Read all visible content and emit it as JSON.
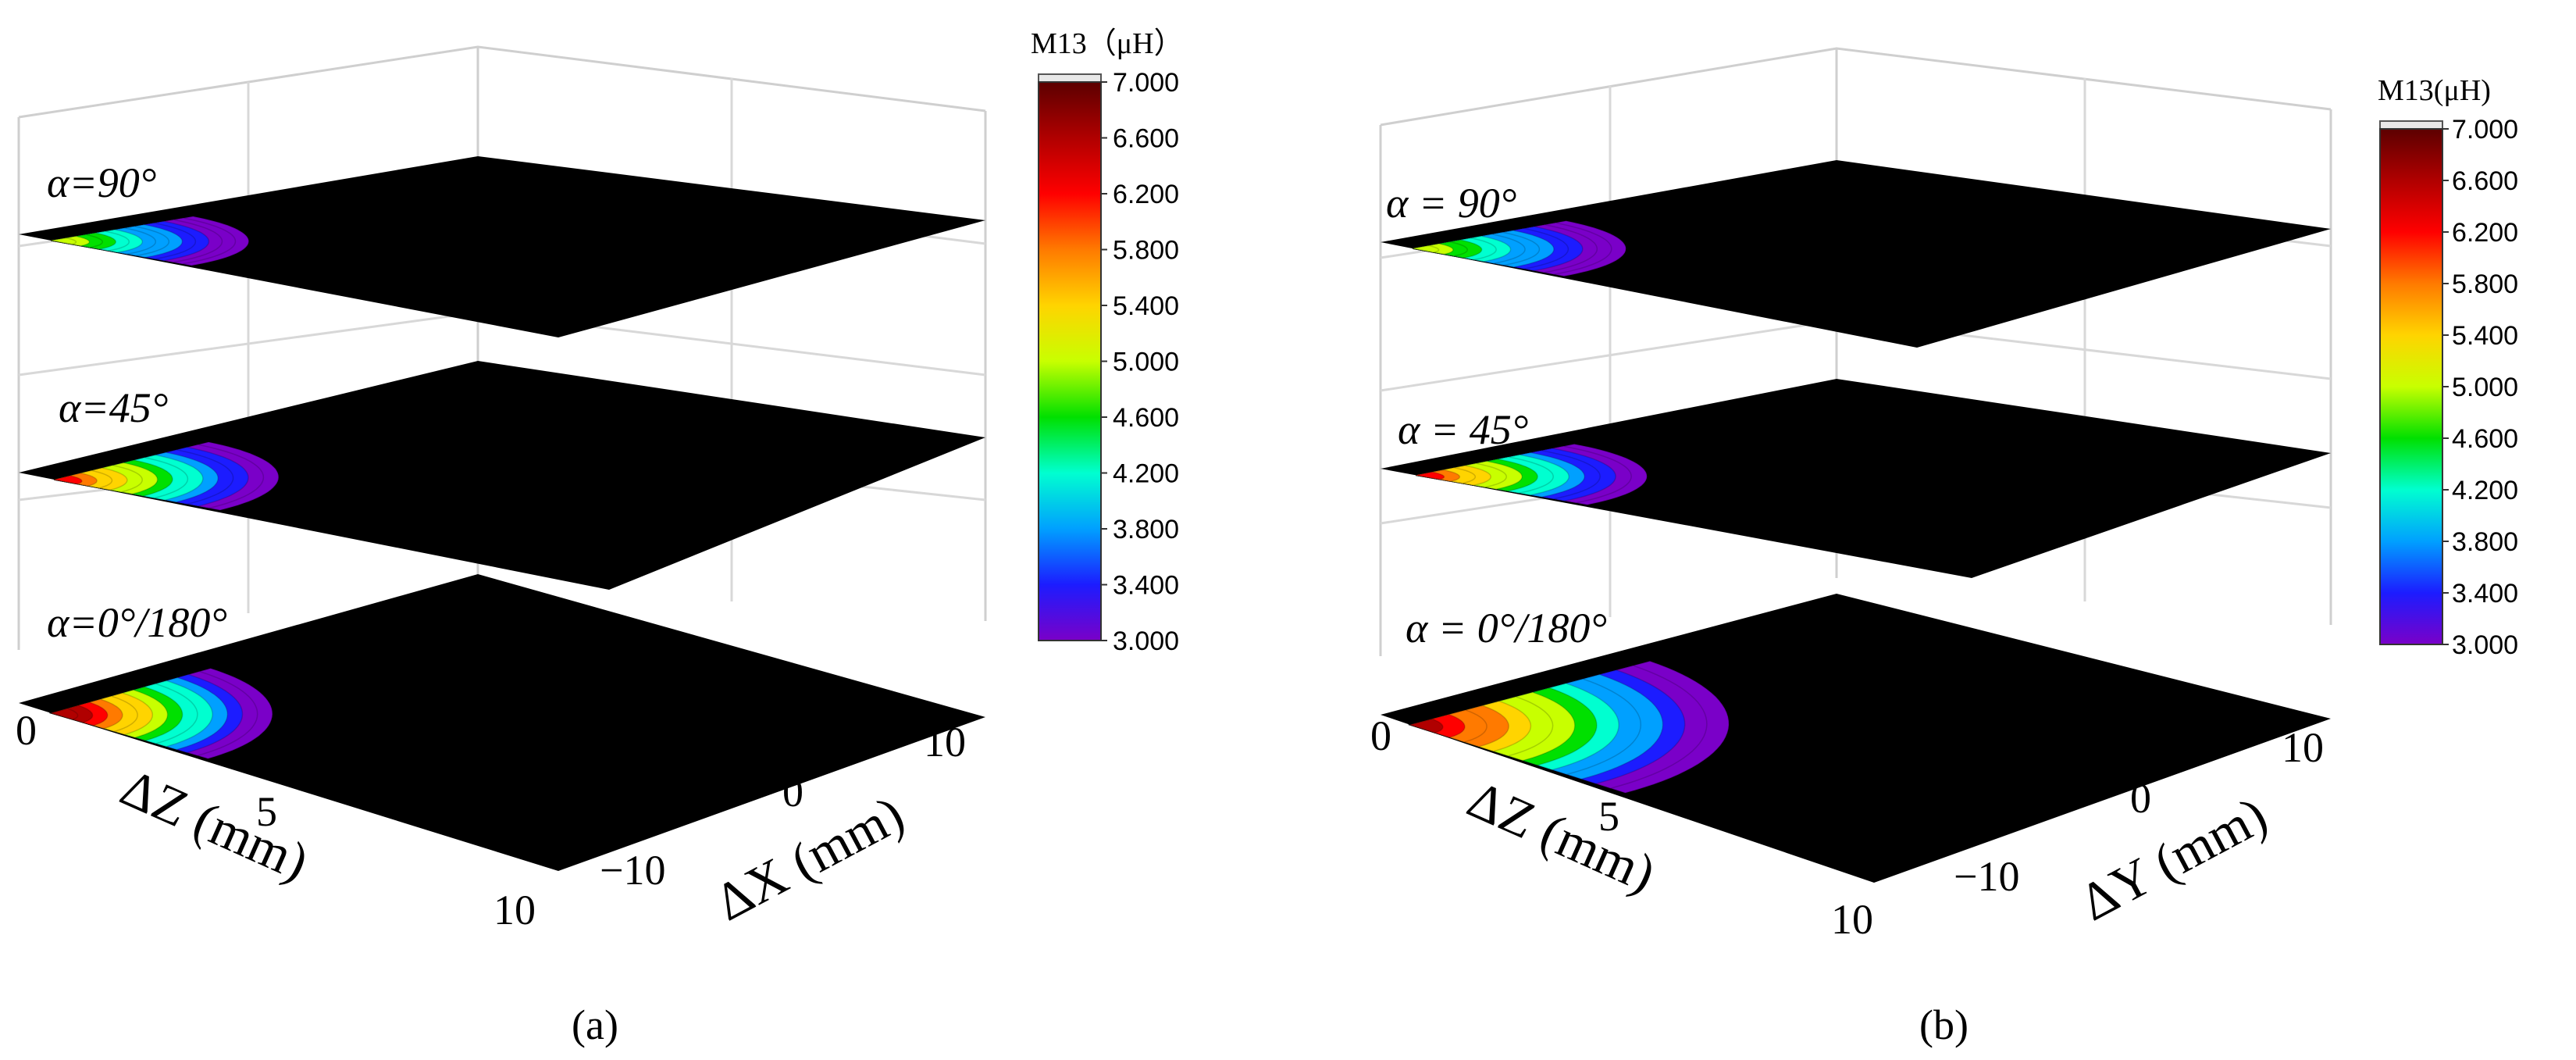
{
  "chart_data": [
    {
      "type": "heatmap",
      "panel_label": "(a)",
      "colorbar": {
        "title": "M13（μH）",
        "ticks": [
          "7.000",
          "6.600",
          "6.200",
          "5.800",
          "5.400",
          "5.000",
          "4.600",
          "4.200",
          "3.800",
          "3.400",
          "3.000"
        ],
        "range": [
          3.0,
          7.0
        ],
        "colors": [
          "#5c0000",
          "#b00000",
          "#ff0000",
          "#ff7a00",
          "#ffd400",
          "#c8ff00",
          "#00e000",
          "#00ffd0",
          "#00a0ff",
          "#1c1cff",
          "#7a00c8",
          "#000000"
        ]
      },
      "x_axis": {
        "title": "ΔZ (mm)",
        "tick_labels": [
          "0",
          "5",
          "10"
        ]
      },
      "y_axis": {
        "title": "ΔX (mm)",
        "tick_labels": [
          "−10",
          "0",
          "10"
        ]
      },
      "layers": [
        {
          "label": "α=90°",
          "peak_value": 5.0,
          "extent": 0.55
        },
        {
          "label": "α=45°",
          "peak_value": 6.0,
          "extent": 0.6
        },
        {
          "label": "α=0°/180°",
          "peak_value": 6.6,
          "extent": 0.62
        }
      ]
    },
    {
      "type": "heatmap",
      "panel_label": "(b)",
      "colorbar": {
        "title": "M13(μH)",
        "ticks": [
          "7.000",
          "6.600",
          "6.200",
          "5.800",
          "5.400",
          "5.000",
          "4.600",
          "4.200",
          "3.800",
          "3.400",
          "3.000"
        ],
        "range": [
          3.0,
          7.0
        ],
        "colors": [
          "#5c0000",
          "#b00000",
          "#ff0000",
          "#ff7a00",
          "#ffd400",
          "#c8ff00",
          "#00e000",
          "#00ffd0",
          "#00a0ff",
          "#1c1cff",
          "#7a00c8",
          "#000000"
        ]
      },
      "x_axis": {
        "title": "ΔZ (mm)",
        "tick_labels": [
          "0",
          "5",
          "10"
        ]
      },
      "y_axis": {
        "title": "ΔY (mm)",
        "tick_labels": [
          "−10",
          "0",
          "10"
        ]
      },
      "layers": [
        {
          "label": "α = 90°",
          "peak_value": 5.0,
          "extent": 0.6
        },
        {
          "label": "α = 45°",
          "peak_value": 6.0,
          "extent": 0.62
        },
        {
          "label": "α = 0°/180°",
          "peak_value": 6.4,
          "extent": 0.95
        }
      ]
    }
  ]
}
